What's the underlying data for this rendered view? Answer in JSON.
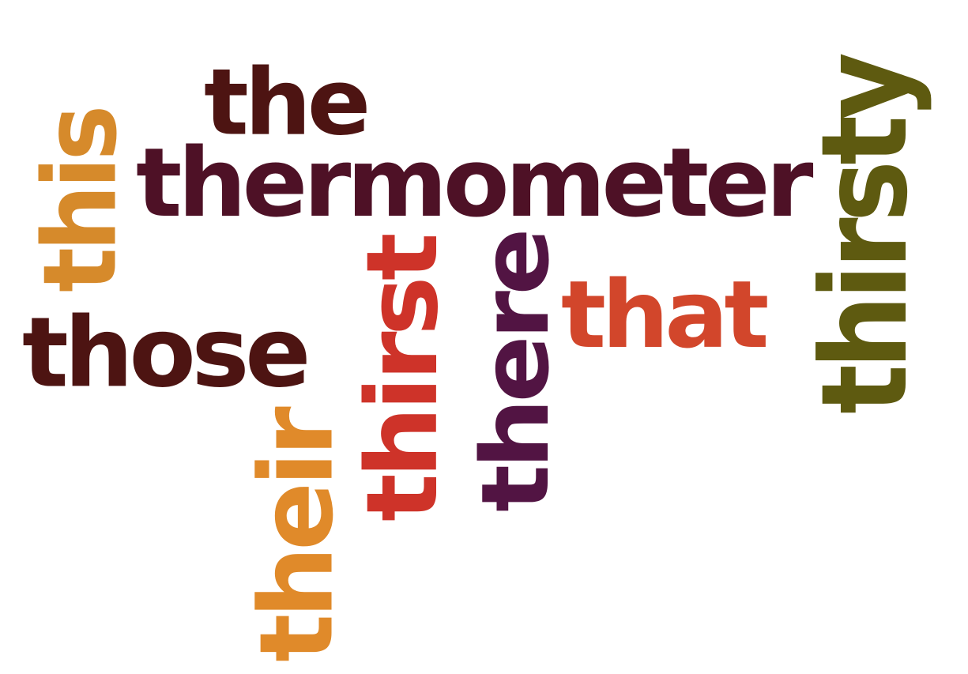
{
  "words": [
    {
      "id": "the",
      "text": "the",
      "color": "#4d1412",
      "vertical": false
    },
    {
      "id": "thermometer",
      "text": "thermometer",
      "color": "#4e1126",
      "vertical": false
    },
    {
      "id": "this",
      "text": "this",
      "color": "#d68a2b",
      "vertical": true
    },
    {
      "id": "those",
      "text": "those",
      "color": "#4d1412",
      "vertical": false
    },
    {
      "id": "their",
      "text": "their",
      "color": "#e08a2a",
      "vertical": true
    },
    {
      "id": "thirst",
      "text": "thirst",
      "color": "#ce3329",
      "vertical": true
    },
    {
      "id": "there",
      "text": "there",
      "color": "#521443",
      "vertical": true
    },
    {
      "id": "that",
      "text": "that",
      "color": "#d2462b",
      "vertical": false
    },
    {
      "id": "thirsty",
      "text": "thirsty",
      "color": "#5e5a10",
      "vertical": true
    }
  ]
}
